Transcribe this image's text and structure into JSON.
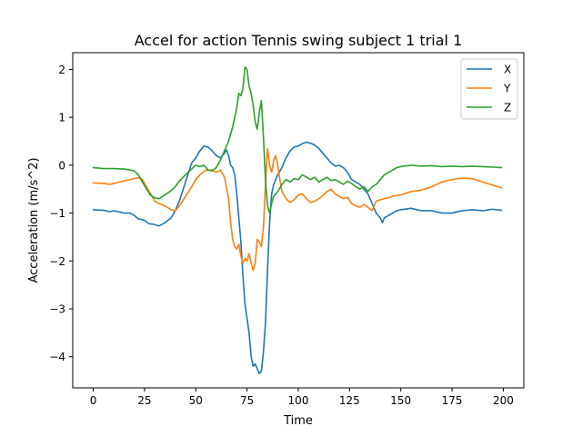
{
  "chart_data": {
    "type": "line",
    "title": "Accel for action Tennis swing subject 1 trial 1",
    "xlabel": "Time",
    "ylabel": "Acceleration (m/s^2)",
    "xlim": [
      -10,
      210
    ],
    "ylim": [
      -4.65,
      2.35
    ],
    "xticks": [
      0,
      25,
      50,
      75,
      100,
      125,
      150,
      175,
      200
    ],
    "yticks": [
      -4,
      -3,
      -2,
      -1,
      0,
      1,
      2
    ],
    "xtick_labels": [
      "0",
      "25",
      "50",
      "75",
      "100",
      "125",
      "150",
      "175",
      "200"
    ],
    "ytick_labels": [
      "−4",
      "−3",
      "−2",
      "−1",
      "0",
      "1",
      "2"
    ],
    "grid": false,
    "legend_position": "top-right",
    "series": [
      {
        "name": "X",
        "color": "#1f77b4",
        "points": [
          [
            0,
            -0.93
          ],
          [
            5,
            -0.94
          ],
          [
            8,
            -0.97
          ],
          [
            10,
            -0.95
          ],
          [
            15,
            -1.0
          ],
          [
            18,
            -1.0
          ],
          [
            20,
            -1.05
          ],
          [
            22,
            -1.12
          ],
          [
            25,
            -1.15
          ],
          [
            27,
            -1.22
          ],
          [
            30,
            -1.24
          ],
          [
            32,
            -1.27
          ],
          [
            35,
            -1.2
          ],
          [
            38,
            -1.1
          ],
          [
            40,
            -0.95
          ],
          [
            42,
            -0.75
          ],
          [
            45,
            -0.35
          ],
          [
            48,
            0.05
          ],
          [
            50,
            0.15
          ],
          [
            52,
            0.3
          ],
          [
            54,
            0.4
          ],
          [
            56,
            0.38
          ],
          [
            58,
            0.3
          ],
          [
            60,
            0.2
          ],
          [
            62,
            0.15
          ],
          [
            64,
            0.25
          ],
          [
            65,
            0.32
          ],
          [
            66,
            0.2
          ],
          [
            67,
            0.0
          ],
          [
            68,
            -0.05
          ],
          [
            69,
            -0.2
          ],
          [
            70,
            -0.6
          ],
          [
            71,
            -1.1
          ],
          [
            72,
            -1.6
          ],
          [
            73,
            -2.3
          ],
          [
            74,
            -2.9
          ],
          [
            75,
            -3.2
          ],
          [
            76,
            -3.5
          ],
          [
            77,
            -4.0
          ],
          [
            78,
            -4.2
          ],
          [
            79,
            -4.15
          ],
          [
            80,
            -4.25
          ],
          [
            81,
            -4.35
          ],
          [
            82,
            -4.3
          ],
          [
            83,
            -3.9
          ],
          [
            84,
            -3.3
          ],
          [
            85,
            -2.2
          ],
          [
            86,
            -1.2
          ],
          [
            87,
            -0.6
          ],
          [
            88,
            -0.4
          ],
          [
            90,
            -0.2
          ],
          [
            92,
            -0.05
          ],
          [
            94,
            0.15
          ],
          [
            96,
            0.3
          ],
          [
            98,
            0.38
          ],
          [
            100,
            0.4
          ],
          [
            102,
            0.45
          ],
          [
            104,
            0.48
          ],
          [
            106,
            0.46
          ],
          [
            108,
            0.42
          ],
          [
            110,
            0.35
          ],
          [
            112,
            0.25
          ],
          [
            114,
            0.15
          ],
          [
            116,
            0.05
          ],
          [
            118,
            -0.02
          ],
          [
            120,
            0.0
          ],
          [
            122,
            -0.05
          ],
          [
            124,
            -0.15
          ],
          [
            126,
            -0.3
          ],
          [
            128,
            -0.35
          ],
          [
            130,
            -0.4
          ],
          [
            132,
            -0.5
          ],
          [
            134,
            -0.6
          ],
          [
            136,
            -0.8
          ],
          [
            138,
            -1.0
          ],
          [
            140,
            -1.1
          ],
          [
            141,
            -1.2
          ],
          [
            142,
            -1.1
          ],
          [
            144,
            -1.05
          ],
          [
            146,
            -1.0
          ],
          [
            148,
            -0.95
          ],
          [
            150,
            -0.93
          ],
          [
            155,
            -0.9
          ],
          [
            160,
            -0.95
          ],
          [
            165,
            -0.95
          ],
          [
            170,
            -1.0
          ],
          [
            175,
            -1.0
          ],
          [
            180,
            -0.95
          ],
          [
            185,
            -0.93
          ],
          [
            190,
            -0.95
          ],
          [
            195,
            -0.92
          ],
          [
            199,
            -0.94
          ]
        ]
      },
      {
        "name": "Y",
        "color": "#ff7f0e",
        "points": [
          [
            0,
            -0.37
          ],
          [
            5,
            -0.38
          ],
          [
            8,
            -0.4
          ],
          [
            10,
            -0.38
          ],
          [
            15,
            -0.33
          ],
          [
            20,
            -0.28
          ],
          [
            22,
            -0.26
          ],
          [
            24,
            -0.3
          ],
          [
            26,
            -0.45
          ],
          [
            28,
            -0.6
          ],
          [
            30,
            -0.75
          ],
          [
            32,
            -0.8
          ],
          [
            35,
            -0.85
          ],
          [
            38,
            -0.93
          ],
          [
            40,
            -0.95
          ],
          [
            42,
            -0.85
          ],
          [
            45,
            -0.65
          ],
          [
            48,
            -0.45
          ],
          [
            50,
            -0.3
          ],
          [
            52,
            -0.2
          ],
          [
            55,
            -0.1
          ],
          [
            58,
            -0.1
          ],
          [
            60,
            -0.15
          ],
          [
            62,
            -0.1
          ],
          [
            64,
            -0.25
          ],
          [
            66,
            -0.7
          ],
          [
            67,
            -1.2
          ],
          [
            68,
            -1.55
          ],
          [
            69,
            -1.7
          ],
          [
            70,
            -1.75
          ],
          [
            71,
            -1.65
          ],
          [
            72,
            -1.9
          ],
          [
            73,
            -2.05
          ],
          [
            74,
            -1.95
          ],
          [
            75,
            -2.0
          ],
          [
            76,
            -1.85
          ],
          [
            77,
            -2.05
          ],
          [
            78,
            -2.2
          ],
          [
            79,
            -2.05
          ],
          [
            80,
            -1.55
          ],
          [
            81,
            -1.6
          ],
          [
            82,
            -1.7
          ],
          [
            83,
            -1.3
          ],
          [
            84,
            -0.4
          ],
          [
            85,
            0.35
          ],
          [
            86,
            0.0
          ],
          [
            87,
            -0.15
          ],
          [
            88,
            0.1
          ],
          [
            89,
            0.2
          ],
          [
            90,
            0.0
          ],
          [
            91,
            -0.3
          ],
          [
            92,
            -0.55
          ],
          [
            94,
            -0.7
          ],
          [
            96,
            -0.78
          ],
          [
            98,
            -0.72
          ],
          [
            100,
            -0.62
          ],
          [
            102,
            -0.6
          ],
          [
            104,
            -0.7
          ],
          [
            106,
            -0.78
          ],
          [
            108,
            -0.75
          ],
          [
            110,
            -0.7
          ],
          [
            112,
            -0.63
          ],
          [
            114,
            -0.55
          ],
          [
            116,
            -0.5
          ],
          [
            118,
            -0.6
          ],
          [
            120,
            -0.65
          ],
          [
            122,
            -0.7
          ],
          [
            124,
            -0.67
          ],
          [
            126,
            -0.8
          ],
          [
            128,
            -0.85
          ],
          [
            130,
            -0.88
          ],
          [
            132,
            -0.82
          ],
          [
            134,
            -0.88
          ],
          [
            136,
            -0.95
          ],
          [
            138,
            -0.75
          ],
          [
            140,
            -0.72
          ],
          [
            142,
            -0.7
          ],
          [
            144,
            -0.68
          ],
          [
            146,
            -0.65
          ],
          [
            150,
            -0.62
          ],
          [
            155,
            -0.55
          ],
          [
            160,
            -0.52
          ],
          [
            165,
            -0.45
          ],
          [
            170,
            -0.35
          ],
          [
            175,
            -0.3
          ],
          [
            180,
            -0.27
          ],
          [
            185,
            -0.28
          ],
          [
            190,
            -0.35
          ],
          [
            195,
            -0.42
          ],
          [
            199,
            -0.47
          ]
        ]
      },
      {
        "name": "Z",
        "color": "#2ca02c",
        "points": [
          [
            0,
            -0.05
          ],
          [
            5,
            -0.07
          ],
          [
            10,
            -0.07
          ],
          [
            15,
            -0.08
          ],
          [
            18,
            -0.1
          ],
          [
            20,
            -0.12
          ],
          [
            22,
            -0.2
          ],
          [
            24,
            -0.35
          ],
          [
            26,
            -0.5
          ],
          [
            28,
            -0.63
          ],
          [
            30,
            -0.68
          ],
          [
            32,
            -0.7
          ],
          [
            35,
            -0.62
          ],
          [
            38,
            -0.53
          ],
          [
            40,
            -0.45
          ],
          [
            42,
            -0.33
          ],
          [
            45,
            -0.2
          ],
          [
            48,
            -0.08
          ],
          [
            50,
            0.0
          ],
          [
            52,
            -0.03
          ],
          [
            54,
            0.0
          ],
          [
            56,
            -0.1
          ],
          [
            58,
            -0.12
          ],
          [
            60,
            -0.05
          ],
          [
            62,
            0.1
          ],
          [
            64,
            0.3
          ],
          [
            66,
            0.5
          ],
          [
            68,
            0.8
          ],
          [
            70,
            1.2
          ],
          [
            71,
            1.5
          ],
          [
            72,
            1.45
          ],
          [
            73,
            1.6
          ],
          [
            74,
            2.05
          ],
          [
            75,
            2.0
          ],
          [
            76,
            1.65
          ],
          [
            77,
            1.5
          ],
          [
            78,
            1.25
          ],
          [
            79,
            0.9
          ],
          [
            80,
            0.75
          ],
          [
            81,
            1.1
          ],
          [
            82,
            1.35
          ],
          [
            83,
            0.6
          ],
          [
            84,
            -0.3
          ],
          [
            85,
            -0.85
          ],
          [
            86,
            -1.0
          ],
          [
            87,
            -0.8
          ],
          [
            88,
            -0.65
          ],
          [
            90,
            -0.55
          ],
          [
            92,
            -0.4
          ],
          [
            94,
            -0.3
          ],
          [
            96,
            -0.35
          ],
          [
            98,
            -0.28
          ],
          [
            100,
            -0.3
          ],
          [
            102,
            -0.2
          ],
          [
            104,
            -0.25
          ],
          [
            106,
            -0.3
          ],
          [
            108,
            -0.25
          ],
          [
            110,
            -0.35
          ],
          [
            112,
            -0.3
          ],
          [
            114,
            -0.25
          ],
          [
            116,
            -0.32
          ],
          [
            118,
            -0.3
          ],
          [
            120,
            -0.35
          ],
          [
            122,
            -0.4
          ],
          [
            124,
            -0.33
          ],
          [
            126,
            -0.38
          ],
          [
            128,
            -0.45
          ],
          [
            130,
            -0.5
          ],
          [
            132,
            -0.45
          ],
          [
            134,
            -0.55
          ],
          [
            136,
            -0.45
          ],
          [
            138,
            -0.4
          ],
          [
            140,
            -0.3
          ],
          [
            142,
            -0.2
          ],
          [
            144,
            -0.15
          ],
          [
            146,
            -0.1
          ],
          [
            148,
            -0.05
          ],
          [
            150,
            -0.03
          ],
          [
            155,
            0.0
          ],
          [
            160,
            -0.02
          ],
          [
            165,
            -0.01
          ],
          [
            170,
            -0.03
          ],
          [
            175,
            -0.02
          ],
          [
            180,
            -0.03
          ],
          [
            185,
            -0.02
          ],
          [
            190,
            -0.03
          ],
          [
            195,
            -0.04
          ],
          [
            199,
            -0.05
          ]
        ]
      }
    ]
  }
}
